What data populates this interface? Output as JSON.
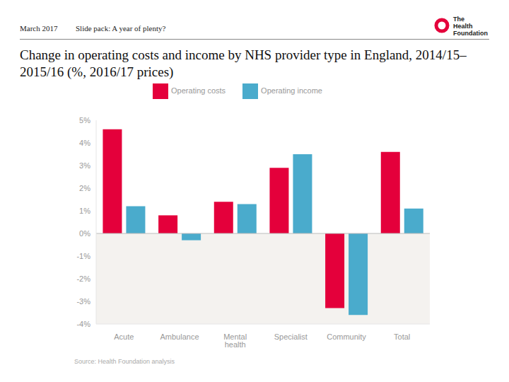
{
  "header": {
    "date": "March 2017",
    "slide": "Slide pack: A year of plenty?",
    "logo": [
      "The",
      "Health",
      "Foundation"
    ]
  },
  "chart_data": {
    "type": "bar",
    "title": "Change in operating costs and income by NHS provider type in England, 2014/15–2015/16 (%, 2016/17 prices)",
    "source": "Source: Health Foundation analysis",
    "categories": [
      "Acute",
      "Ambulance",
      "Mental health",
      "Specialist",
      "Community",
      "Total"
    ],
    "series": [
      {
        "name": "Operating costs",
        "color": "#e4003b",
        "values": [
          4.6,
          0.8,
          1.4,
          2.9,
          -3.3,
          3.6
        ]
      },
      {
        "name": "Operating income",
        "color": "#4aabcc",
        "values": [
          1.2,
          -0.3,
          1.3,
          3.5,
          -3.6,
          1.1
        ]
      }
    ],
    "ylim": [
      -4,
      5
    ],
    "yticks": [
      {
        "value": -4,
        "label": "-4%"
      },
      {
        "value": -3,
        "label": "-3%"
      },
      {
        "value": -2,
        "label": "-2%"
      },
      {
        "value": -1,
        "label": "-1%"
      },
      {
        "value": 0,
        "label": "0%"
      },
      {
        "value": 1,
        "label": "1%"
      },
      {
        "value": 2,
        "label": "2%"
      },
      {
        "value": 3,
        "label": "3%"
      },
      {
        "value": 4,
        "label": "4%"
      },
      {
        "value": 5,
        "label": "5%"
      }
    ],
    "grid": false,
    "legend": "top"
  }
}
